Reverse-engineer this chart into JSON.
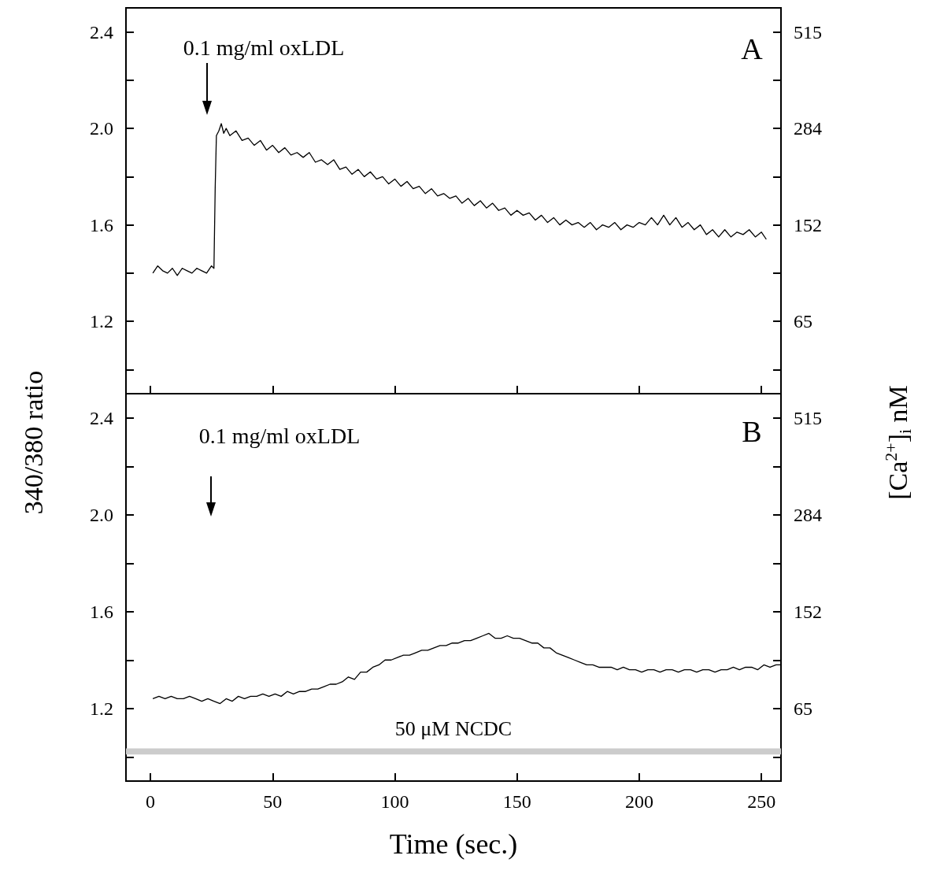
{
  "chart_data": [
    {
      "type": "line",
      "ylabel": "340/380 ratio",
      "y2label": "[Ca$^{2+}$]$_{i}$ nM",
      "annotations": [
        "0.1 mg/ml oxLDL",
        "A"
      ],
      "xlim": [
        -10,
        258
      ],
      "xticks": [
        0,
        50,
        100,
        150,
        200,
        250
      ],
      "ylim": [
        0.9,
        2.5
      ],
      "yticks": [
        {
          "value": 1.0,
          "label": null
        },
        {
          "value": 1.2,
          "label": "1.2"
        },
        {
          "value": 1.4,
          "label": null
        },
        {
          "value": 1.6,
          "label": "1.6"
        },
        {
          "value": 1.8,
          "label": null
        },
        {
          "value": 2.0,
          "label": "2.0"
        },
        {
          "value": 2.2,
          "label": null
        },
        {
          "value": 2.4,
          "label": "2.4"
        }
      ],
      "y2_categories": [
        null,
        "65",
        null,
        "152",
        null,
        "284",
        null,
        "515"
      ],
      "tick_labels": "y",
      "grid": false,
      "marker": "none",
      "line_style": "solid",
      "series": [
        {
          "color": "#000000",
          "x": [
            1,
            3,
            5,
            7,
            9,
            11,
            13,
            15,
            17,
            19,
            21,
            23,
            25,
            26,
            26.5,
            27,
            28,
            29,
            30,
            31,
            32.5,
            35,
            37.5,
            40,
            42.5,
            45,
            47.5,
            50,
            52.5,
            55,
            57.5,
            60,
            62.5,
            65,
            67.5,
            70,
            72.5,
            75,
            77.5,
            80,
            82.5,
            85,
            87.5,
            90,
            92.5,
            95,
            97.5,
            100,
            102.5,
            105,
            107.5,
            110,
            112.5,
            115,
            117.5,
            120,
            122.5,
            125,
            127.5,
            130,
            132.5,
            135,
            137.5,
            140,
            142.5,
            145,
            147.5,
            150,
            152.5,
            155,
            157.5,
            160,
            162.5,
            165,
            167.5,
            170,
            172.5,
            175,
            177.5,
            180,
            182.5,
            185,
            187.5,
            190,
            192.5,
            195,
            197.5,
            200,
            202.5,
            205,
            207.5,
            210,
            212.5,
            215,
            217.5,
            220,
            222.5,
            225,
            227.5,
            230,
            232.5,
            235,
            237.5,
            240,
            242.5,
            245,
            247.5,
            250,
            252
          ],
          "values": [
            1.4,
            1.43,
            1.41,
            1.4,
            1.42,
            1.39,
            1.42,
            1.41,
            1.4,
            1.42,
            1.41,
            1.4,
            1.43,
            1.42,
            1.75,
            1.97,
            1.99,
            2.02,
            1.98,
            2.0,
            1.97,
            1.99,
            1.95,
            1.96,
            1.93,
            1.95,
            1.91,
            1.93,
            1.9,
            1.92,
            1.89,
            1.9,
            1.88,
            1.9,
            1.86,
            1.87,
            1.85,
            1.87,
            1.83,
            1.84,
            1.81,
            1.83,
            1.8,
            1.82,
            1.79,
            1.8,
            1.77,
            1.79,
            1.76,
            1.78,
            1.75,
            1.76,
            1.73,
            1.75,
            1.72,
            1.73,
            1.71,
            1.72,
            1.69,
            1.71,
            1.68,
            1.7,
            1.67,
            1.69,
            1.66,
            1.67,
            1.64,
            1.66,
            1.64,
            1.65,
            1.62,
            1.64,
            1.61,
            1.63,
            1.6,
            1.62,
            1.6,
            1.61,
            1.59,
            1.61,
            1.58,
            1.6,
            1.59,
            1.61,
            1.58,
            1.6,
            1.59,
            1.61,
            1.6,
            1.63,
            1.6,
            1.64,
            1.6,
            1.63,
            1.59,
            1.61,
            1.58,
            1.6,
            1.56,
            1.58,
            1.55,
            1.58,
            1.55,
            1.57,
            1.56,
            1.58,
            1.55,
            1.57,
            1.54
          ]
        }
      ]
    },
    {
      "type": "line",
      "xlabel": "Time (sec.)",
      "annotations": [
        "0.1 mg/ml oxLDL",
        "B"
      ],
      "xlim": [
        -10,
        258
      ],
      "xticks": [
        0,
        50,
        100,
        150,
        200,
        250
      ],
      "ylim": [
        0.9,
        2.5
      ],
      "yticks": [
        {
          "value": 1.0,
          "label": null
        },
        {
          "value": 1.2,
          "label": "1.2"
        },
        {
          "value": 1.4,
          "label": null
        },
        {
          "value": 1.6,
          "label": "1.6"
        },
        {
          "value": 1.8,
          "label": null
        },
        {
          "value": 2.0,
          "label": "2.0"
        },
        {
          "value": 2.2,
          "label": null
        },
        {
          "value": 2.4,
          "label": "2.4"
        }
      ],
      "y2_categories": [
        null,
        "65",
        null,
        "152",
        null,
        "284",
        null,
        "515"
      ],
      "grid": false,
      "marker": "none",
      "line_style": "solid",
      "bands": [
        {
          "axis": "y",
          "from": 1.01,
          "to": 1.035,
          "label": "50 μM NCDC",
          "color": "#cccccc"
        }
      ],
      "series": [
        {
          "color": "#000000",
          "x": [
            1,
            3.5,
            6,
            8.5,
            11,
            13.5,
            16,
            18.5,
            21,
            23.5,
            26,
            28.5,
            31,
            33.5,
            36,
            38.5,
            41,
            43.5,
            46,
            48.5,
            51,
            53.5,
            56,
            58.5,
            61,
            63.5,
            66,
            68.5,
            71,
            73.5,
            76,
            78.5,
            81,
            83.5,
            86,
            88.5,
            91,
            93.5,
            96,
            98.5,
            101,
            103.5,
            106,
            108.5,
            111,
            113.5,
            116,
            118.5,
            121,
            123.5,
            126,
            128.5,
            131,
            133.5,
            136,
            138.5,
            141,
            143.5,
            146,
            148.5,
            151,
            153.5,
            156,
            158.5,
            161,
            163.5,
            166,
            168.5,
            171,
            173.5,
            176,
            178.5,
            181,
            183.5,
            186,
            188.5,
            191,
            193.5,
            196,
            198.5,
            201,
            203.5,
            206,
            208.5,
            211,
            213.5,
            216,
            218.5,
            221,
            223.5,
            226,
            228.5,
            231,
            233.5,
            236,
            238.5,
            241,
            243.5,
            246,
            248.5,
            251,
            253.5,
            256,
            258
          ],
          "values": [
            1.24,
            1.25,
            1.24,
            1.25,
            1.24,
            1.24,
            1.25,
            1.24,
            1.23,
            1.24,
            1.23,
            1.22,
            1.24,
            1.23,
            1.25,
            1.24,
            1.25,
            1.25,
            1.26,
            1.25,
            1.26,
            1.25,
            1.27,
            1.26,
            1.27,
            1.27,
            1.28,
            1.28,
            1.29,
            1.3,
            1.3,
            1.31,
            1.33,
            1.32,
            1.35,
            1.35,
            1.37,
            1.38,
            1.4,
            1.4,
            1.41,
            1.42,
            1.42,
            1.43,
            1.44,
            1.44,
            1.45,
            1.46,
            1.46,
            1.47,
            1.47,
            1.48,
            1.48,
            1.49,
            1.5,
            1.51,
            1.49,
            1.49,
            1.5,
            1.49,
            1.49,
            1.48,
            1.47,
            1.47,
            1.45,
            1.45,
            1.43,
            1.42,
            1.41,
            1.4,
            1.39,
            1.38,
            1.38,
            1.37,
            1.37,
            1.37,
            1.36,
            1.37,
            1.36,
            1.36,
            1.35,
            1.36,
            1.36,
            1.35,
            1.36,
            1.36,
            1.35,
            1.36,
            1.36,
            1.35,
            1.36,
            1.36,
            1.35,
            1.36,
            1.36,
            1.37,
            1.36,
            1.37,
            1.37,
            1.36,
            1.38,
            1.37,
            1.38,
            1.38
          ]
        }
      ]
    }
  ]
}
